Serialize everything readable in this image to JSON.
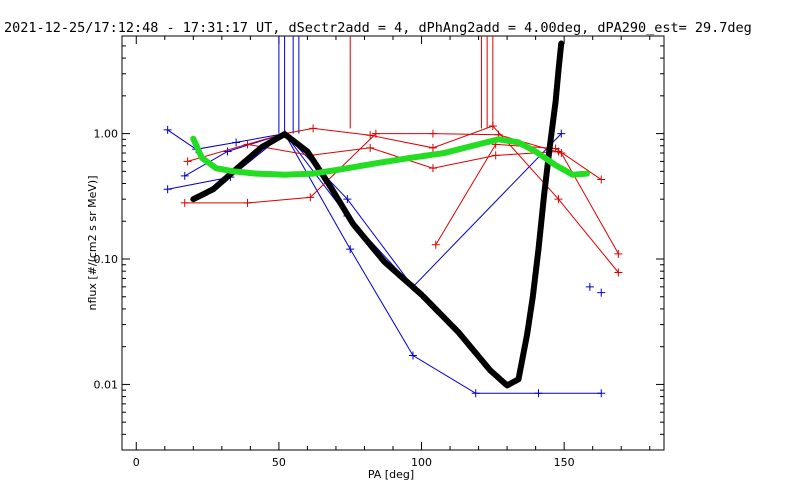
{
  "chart_data": {
    "type": "scatter",
    "title": "2021-12-25/17:12:48 - 17:31:17 UT, dSectr2add = 4, dPhAng2add = 4.00deg, dPA290_est=  29.7deg",
    "xlabel": "PA [deg]",
    "ylabel": "nflux [#/(cm2 s sr MeV)]",
    "xlim": [
      -5,
      185
    ],
    "ylim": [
      0.003,
      6.0
    ],
    "yscale": "log",
    "x_ticks": [
      {
        "value": 0,
        "label": "0"
      },
      {
        "value": 50,
        "label": "50"
      },
      {
        "value": 100,
        "label": "100"
      },
      {
        "value": 150,
        "label": "150"
      }
    ],
    "y_ticks": [
      {
        "value": 0.01,
        "label": "0.01"
      },
      {
        "value": 0.1,
        "label": "0.10"
      },
      {
        "value": 1.0,
        "label": "1.00"
      }
    ],
    "grid": false,
    "colors": {
      "blue": "#0000cc",
      "red": "#dd0000",
      "black": "#000000",
      "green": "#22dd22",
      "frame": "#000000"
    },
    "series": [
      {
        "color": "blue",
        "style": "line+cross",
        "x": [
          11,
          21,
          35,
          52,
          75,
          97,
          119,
          141,
          163
        ],
        "y": [
          1.07,
          0.75,
          0.85,
          1.0,
          0.12,
          0.017,
          0.0085,
          0.0085,
          0.0085
        ]
      },
      {
        "color": "blue",
        "style": "line+cross",
        "x": [
          11,
          33,
          52,
          74,
          97,
          149
        ],
        "y": [
          0.36,
          0.45,
          1.0,
          0.3,
          0.06,
          1.0
        ]
      },
      {
        "color": "blue",
        "style": "line+cross",
        "x": [
          17,
          32,
          52,
          74,
          97
        ],
        "y": [
          0.46,
          0.72,
          1.0,
          0.22,
          0.06
        ]
      },
      {
        "color": "blue",
        "style": "cross",
        "x": [
          159,
          163
        ],
        "y": [
          0.06,
          0.054
        ]
      },
      {
        "color": "red",
        "style": "line+cross",
        "x": [
          17,
          39,
          61,
          84,
          104,
          127,
          149,
          169
        ],
        "y": [
          0.28,
          0.28,
          0.31,
          1.0,
          1.0,
          0.98,
          0.7,
          0.11
        ]
      },
      {
        "color": "red",
        "style": "line+cross",
        "x": [
          18,
          52,
          62,
          82,
          104,
          125,
          148,
          169
        ],
        "y": [
          0.6,
          1.0,
          1.1,
          0.97,
          0.77,
          1.15,
          0.3,
          0.078
        ]
      },
      {
        "color": "red",
        "style": "line+cross",
        "x": [
          39,
          61,
          82,
          104,
          126,
          148
        ],
        "y": [
          0.82,
          0.67,
          0.77,
          0.53,
          0.67,
          0.72
        ]
      },
      {
        "color": "red",
        "style": "line+cross",
        "x": [
          105,
          126,
          147,
          163
        ],
        "y": [
          0.13,
          0.82,
          0.76,
          0.43
        ]
      },
      {
        "color": "black",
        "style": "thick-dotted",
        "x": [
          20,
          27,
          35,
          44,
          52,
          60,
          68,
          76,
          87,
          100,
          113,
          124,
          130,
          134,
          137,
          139,
          141,
          143,
          145,
          147,
          148,
          149
        ],
        "y": [
          0.3,
          0.36,
          0.52,
          0.78,
          0.99,
          0.72,
          0.38,
          0.19,
          0.095,
          0.052,
          0.026,
          0.013,
          0.0098,
          0.011,
          0.025,
          0.05,
          0.12,
          0.33,
          0.8,
          1.8,
          3.2,
          5.3
        ]
      },
      {
        "color": "green",
        "style": "thick-dotted",
        "x": [
          20,
          23,
          28,
          34,
          42,
          52,
          62,
          72,
          84,
          96,
          108,
          118,
          127,
          134,
          140,
          147,
          153,
          158
        ],
        "y": [
          0.91,
          0.64,
          0.53,
          0.5,
          0.48,
          0.47,
          0.48,
          0.52,
          0.58,
          0.64,
          0.7,
          0.8,
          0.9,
          0.85,
          0.72,
          0.56,
          0.47,
          0.48
        ]
      }
    ],
    "vertical_markers": {
      "color": "red",
      "x": [
        50,
        52,
        55,
        57,
        75,
        121,
        123,
        125
      ],
      "colors": [
        "blue",
        "blue",
        "blue",
        "blue",
        "red",
        "red",
        "red",
        "red"
      ],
      "y_bottom": [
        1.0,
        1.0,
        1.0,
        1.0,
        1.1,
        1.1,
        1.1,
        1.15
      ]
    }
  }
}
